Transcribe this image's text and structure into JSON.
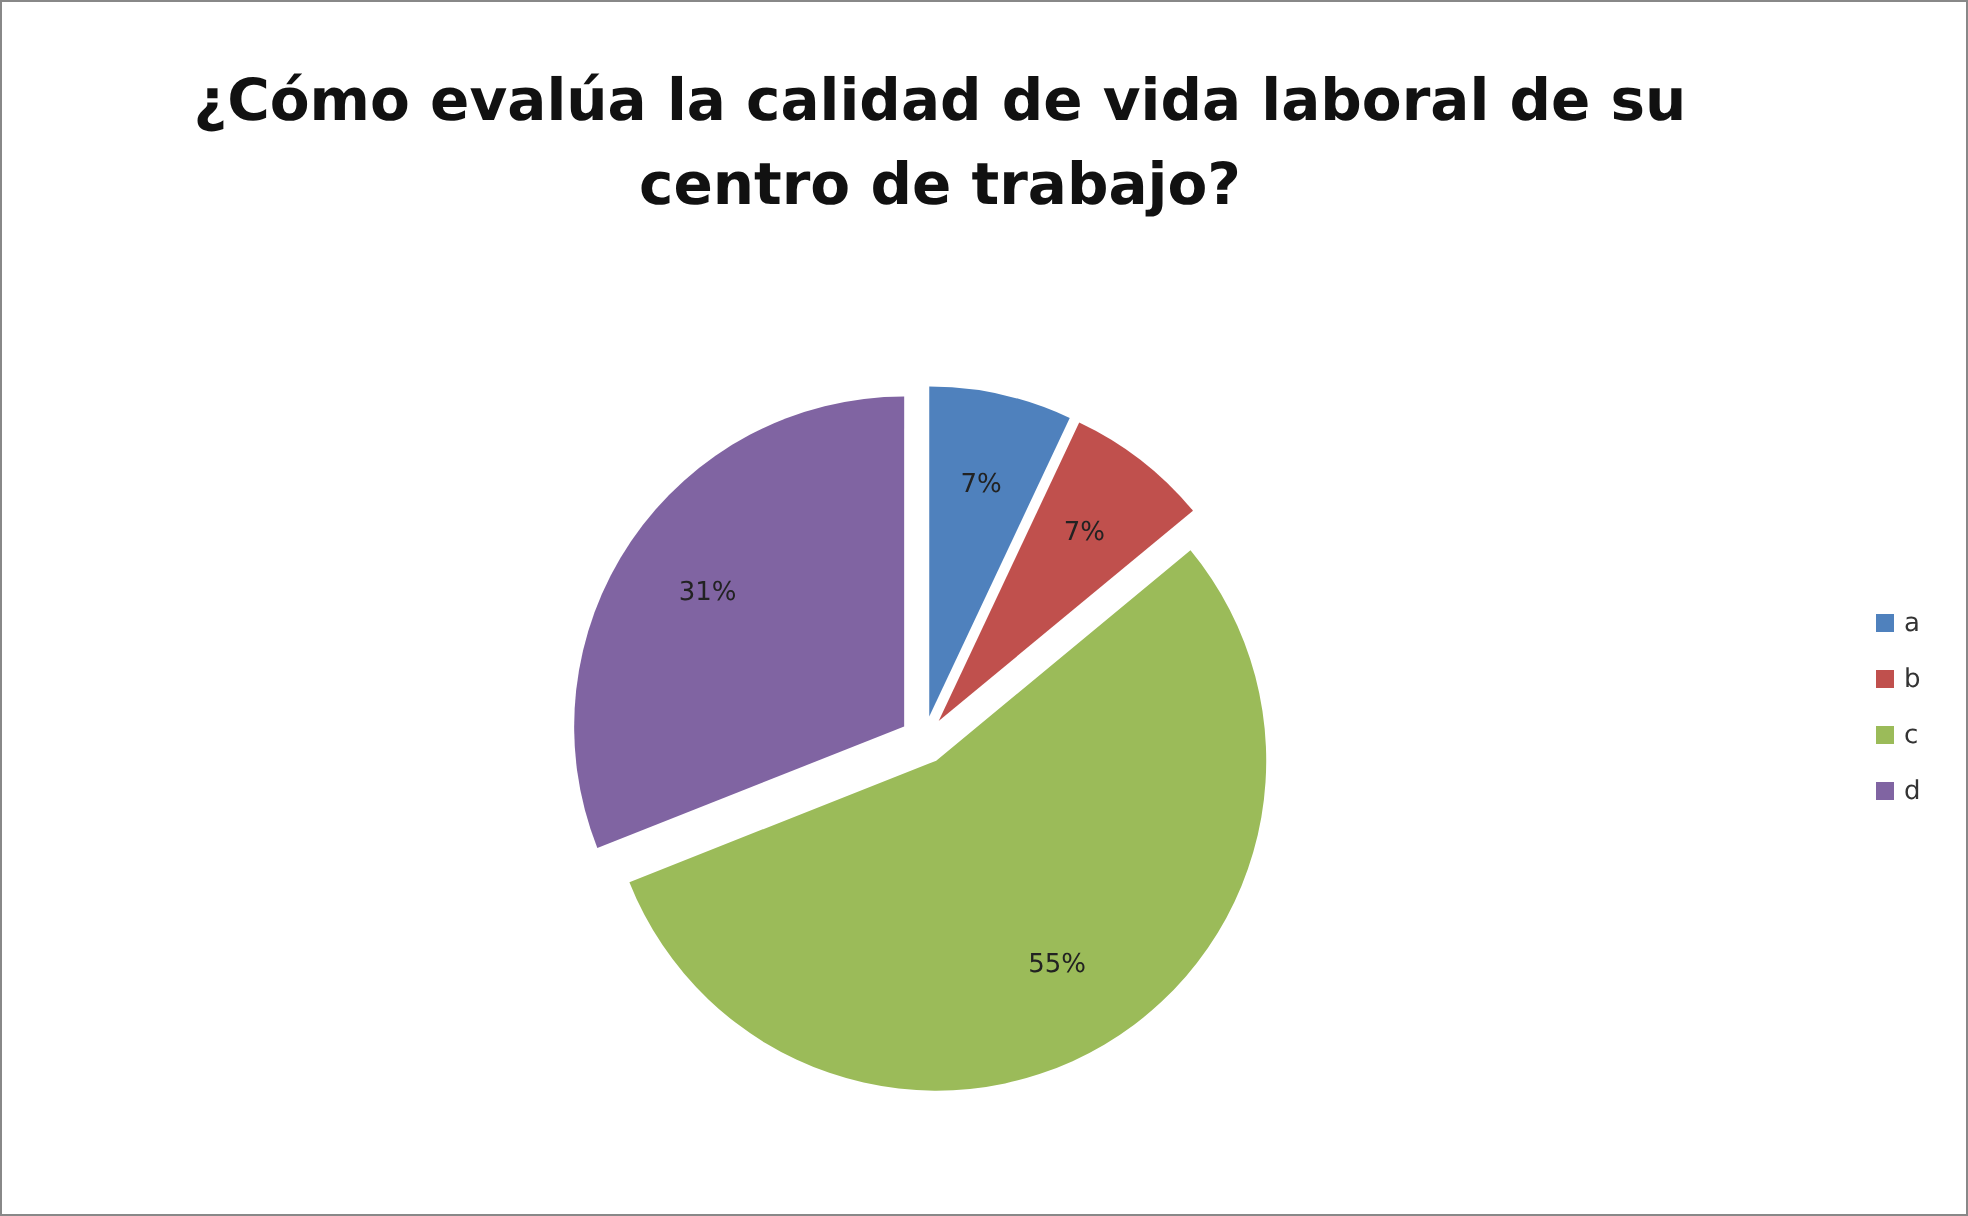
{
  "chart_data": {
    "type": "pie",
    "title": "¿Cómo evalúa la calidad de vida laboral de su centro de trabajo?",
    "categories": [
      "a",
      "b",
      "c",
      "d"
    ],
    "values": [
      7,
      7,
      55,
      31
    ],
    "colors": [
      "#4f81bd",
      "#c0504d",
      "#9bbb59",
      "#8064a2"
    ],
    "value_labels": [
      "7%",
      "7%",
      "55%",
      "31%"
    ],
    "legend": "right"
  }
}
